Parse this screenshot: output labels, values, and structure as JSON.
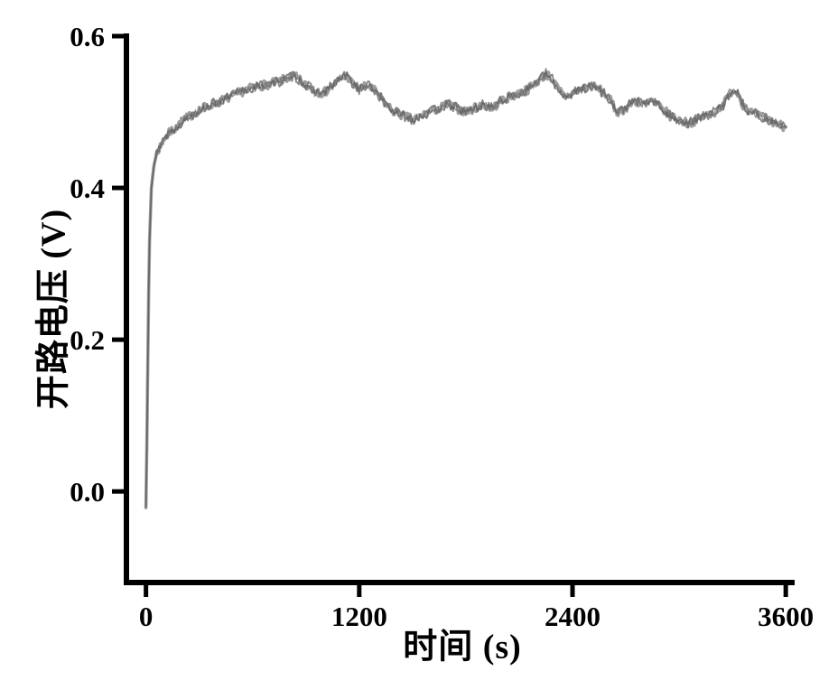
{
  "figure": {
    "background": "#ffffff",
    "axis_color": "#000000"
  },
  "chart_data": {
    "type": "line",
    "title": "",
    "xlabel": "时间 (s)",
    "ylabel": "开路电压 (V)",
    "xlim": [
      -110,
      3650
    ],
    "ylim": [
      -0.12,
      0.6
    ],
    "xticks": [
      0,
      1200,
      2400,
      3600
    ],
    "yticks": [
      0.0,
      0.2,
      0.4,
      0.6
    ],
    "xtick_labels": [
      "0",
      "1200",
      "2400",
      "3600"
    ],
    "ytick_labels": [
      "0.0",
      "0.2",
      "0.4",
      "0.6"
    ],
    "grid": false,
    "legend": "none",
    "line_color": "#949494",
    "line_edge_color": "#6f6f6f",
    "series": [
      {
        "name": "open-circuit-voltage",
        "x": [
          0,
          5,
          10,
          15,
          20,
          30,
          45,
          60,
          80,
          100,
          130,
          160,
          200,
          250,
          300,
          350,
          400,
          450,
          500,
          550,
          600,
          650,
          700,
          750,
          800,
          830,
          860,
          900,
          950,
          1000,
          1050,
          1100,
          1130,
          1160,
          1200,
          1250,
          1300,
          1350,
          1400,
          1450,
          1500,
          1550,
          1600,
          1650,
          1700,
          1750,
          1800,
          1850,
          1900,
          1950,
          2000,
          2050,
          2100,
          2150,
          2200,
          2250,
          2280,
          2320,
          2360,
          2400,
          2450,
          2500,
          2550,
          2600,
          2650,
          2700,
          2750,
          2800,
          2850,
          2900,
          2950,
          3000,
          3050,
          3100,
          3150,
          3200,
          3250,
          3300,
          3330,
          3360,
          3400,
          3450,
          3500,
          3550,
          3600
        ],
        "y": [
          -0.02,
          0.06,
          0.16,
          0.26,
          0.33,
          0.4,
          0.43,
          0.445,
          0.455,
          0.465,
          0.472,
          0.478,
          0.487,
          0.495,
          0.503,
          0.508,
          0.513,
          0.517,
          0.523,
          0.528,
          0.532,
          0.535,
          0.537,
          0.54,
          0.545,
          0.548,
          0.543,
          0.535,
          0.528,
          0.525,
          0.535,
          0.545,
          0.548,
          0.538,
          0.53,
          0.535,
          0.525,
          0.51,
          0.5,
          0.495,
          0.49,
          0.495,
          0.5,
          0.505,
          0.51,
          0.505,
          0.5,
          0.505,
          0.51,
          0.505,
          0.515,
          0.52,
          0.525,
          0.53,
          0.54,
          0.55,
          0.545,
          0.53,
          0.52,
          0.525,
          0.53,
          0.535,
          0.53,
          0.52,
          0.5,
          0.505,
          0.515,
          0.51,
          0.515,
          0.505,
          0.495,
          0.49,
          0.485,
          0.49,
          0.495,
          0.5,
          0.51,
          0.53,
          0.525,
          0.51,
          0.5,
          0.495,
          0.49,
          0.485,
          0.48
        ]
      }
    ]
  }
}
